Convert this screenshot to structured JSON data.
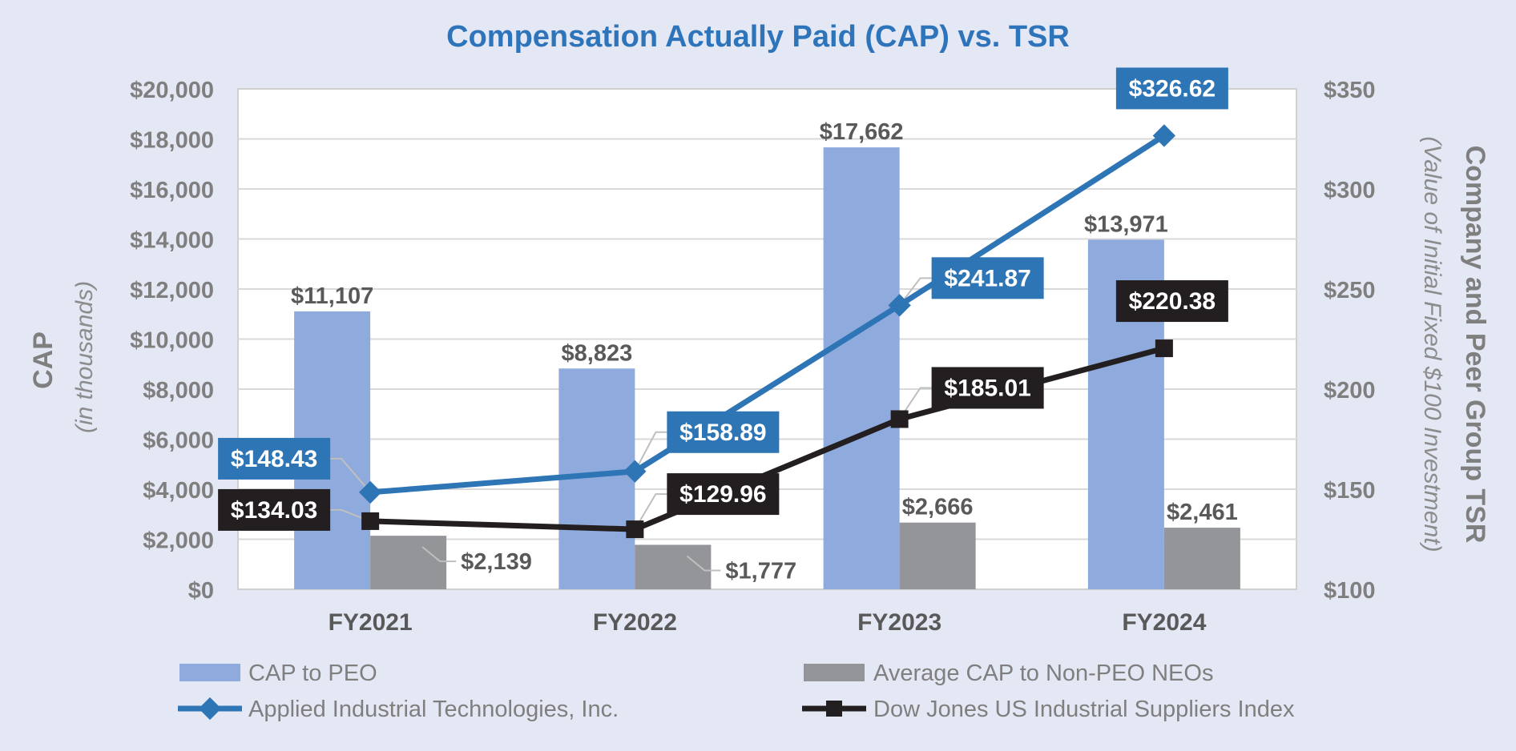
{
  "chart_data": {
    "type": "bar+line",
    "title": "Compensation Actually Paid (CAP) vs. TSR",
    "categories": [
      "FY2021",
      "FY2022",
      "FY2023",
      "FY2024"
    ],
    "y_left": {
      "label": "CAP",
      "sublabel": "(in thousands)",
      "ylim": [
        0,
        20000
      ],
      "ticks": [
        "$0",
        "$2,000",
        "$4,000",
        "$6,000",
        "$8,000",
        "$10,000",
        "$12,000",
        "$14,000",
        "$16,000",
        "$18,000",
        "$20,000"
      ]
    },
    "y_right": {
      "label": "Company and Peer Group TSR",
      "sublabel": "(Value of Initial Fixed $100 Investment)",
      "ylim": [
        100,
        350
      ],
      "ticks": [
        "$100",
        "$150",
        "$200",
        "$250",
        "$300",
        "$350"
      ]
    },
    "bar_series": [
      {
        "name": "CAP to PEO",
        "color": "#8FAADC",
        "values": [
          11107,
          8823,
          17662,
          13971
        ],
        "labels": [
          "$11,107",
          "$8,823",
          "$17,662",
          "$13,971"
        ]
      },
      {
        "name": "Average CAP to Non-PEO NEOs",
        "color": "#939598",
        "values": [
          2139,
          1777,
          2666,
          2461
        ],
        "labels": [
          "$2,139",
          "$1,777",
          "$2,666",
          "$2,461"
        ]
      }
    ],
    "line_series": [
      {
        "name": "Applied Industrial Technologies, Inc.",
        "color": "#2E75B6",
        "marker": "diamond",
        "values": [
          148.43,
          158.89,
          241.87,
          326.62
        ],
        "labels": [
          "$148.43",
          "$158.89",
          "$241.87",
          "$326.62"
        ]
      },
      {
        "name": "Dow Jones US Industrial Suppliers Index",
        "color": "#231F20",
        "marker": "square",
        "values": [
          134.03,
          129.96,
          185.01,
          220.38
        ],
        "labels": [
          "$134.03",
          "$129.96",
          "$185.01",
          "$220.38"
        ]
      }
    ],
    "legend_position": "bottom"
  }
}
